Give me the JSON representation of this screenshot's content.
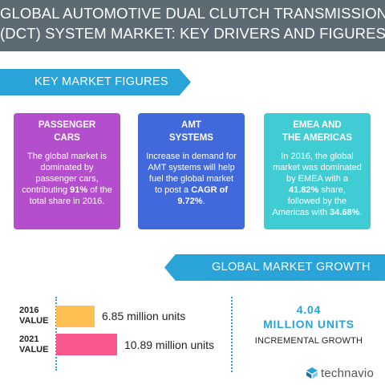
{
  "header": {
    "title_line1": "GLOBAL AUTOMOTIVE DUAL CLUTCH TRANSMISSION",
    "title_line2": "(DCT) SYSTEM MARKET: KEY DRIVERS AND FIGURES"
  },
  "key_figures": {
    "heading": "KEY MARKET FIGURES",
    "cards": [
      {
        "title_line1": "PASSENGER",
        "title_line2": "CARS",
        "text_before": "The global market is dominated by passenger cars, contributing ",
        "highlight": "91%",
        "text_after": " of the total share in 2016.",
        "color": "#b44ecd"
      },
      {
        "title_line1": "AMT",
        "title_line2": "SYSTEMS",
        "text_before": "Increase in demand for AMT systems will help fuel the global market to post a ",
        "highlight": "CAGR of 9.72%",
        "text_after": ".",
        "color": "#4169dc"
      },
      {
        "title_line1": "EMEA AND",
        "title_line2": "THE AMERICAS",
        "text_before": "In 2016, the global market was dominated by EMEA with a ",
        "highlight": "41.82%",
        "text_middle": " share, followed by the Americas with ",
        "highlight2": "34.68%",
        "text_after": ".",
        "color": "#3fcdd3"
      }
    ]
  },
  "growth": {
    "heading": "GLOBAL MARKET GROWTH",
    "rows": [
      {
        "year": "2016",
        "label": "VALUE",
        "value_text": "6.85 million units",
        "color": "#ffbf52"
      },
      {
        "year": "2021",
        "label": "VALUE",
        "value_text": "10.89 million units",
        "color": "#f95790"
      }
    ],
    "incremental_value": "4.04",
    "incremental_unit": "MILLION UNITS",
    "incremental_label": "INCREMENTAL GROWTH"
  },
  "chart_data": {
    "type": "bar",
    "categories": [
      "2016",
      "2021"
    ],
    "values": [
      6.85,
      10.89
    ],
    "title": "GLOBAL MARKET GROWTH",
    "xlabel": "",
    "ylabel": ""
  },
  "brand": {
    "name": "technavio",
    "icon": "technavio-logo-icon"
  }
}
